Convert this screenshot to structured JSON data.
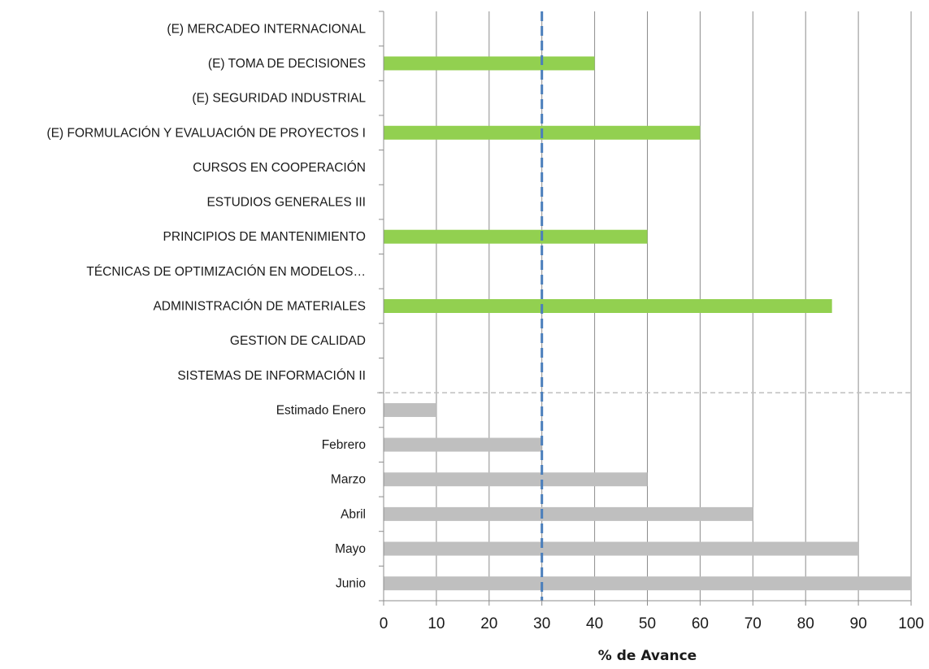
{
  "chart_data": {
    "type": "bar",
    "orientation": "horizontal",
    "xlabel": "% de Avance",
    "xlim": [
      0,
      100
    ],
    "xticks": [
      0,
      10,
      20,
      30,
      40,
      50,
      60,
      70,
      80,
      90,
      100
    ],
    "grid": "vertical",
    "reference_line": {
      "value": 30,
      "style": "dashed",
      "color": "#4a7ebb"
    },
    "categories": [
      "(E) MERCADEO INTERNACIONAL",
      "(E) TOMA DE DECISIONES",
      "(E) SEGURIDAD INDUSTRIAL",
      "(E) FORMULACIÓN Y EVALUACIÓN DE PROYECTOS I",
      "CURSOS EN COOPERACIÓN",
      "ESTUDIOS GENERALES III",
      "PRINCIPIOS DE MANTENIMIENTO",
      "TÉCNICAS  DE  OPTIMIZACIÓN  EN  MODELOS…",
      "ADMINISTRACIÓN DE MATERIALES",
      "GESTION DE CALIDAD",
      "SISTEMAS DE INFORMACIÓN II",
      "Estimado Enero",
      "Febrero",
      "Marzo",
      "Abril",
      "Mayo",
      "Junio"
    ],
    "values": [
      0,
      40,
      0,
      60,
      0,
      0,
      50,
      0,
      85,
      0,
      0,
      10,
      30,
      50,
      70,
      90,
      100
    ],
    "bar_colors": [
      "#92d050",
      "#92d050",
      "#92d050",
      "#92d050",
      "#92d050",
      "#92d050",
      "#92d050",
      "#92d050",
      "#92d050",
      "#92d050",
      "#92d050",
      "#bfbfbf",
      "#bfbfbf",
      "#bfbfbf",
      "#bfbfbf",
      "#bfbfbf",
      "#bfbfbf"
    ],
    "separator_after_index": 10
  }
}
